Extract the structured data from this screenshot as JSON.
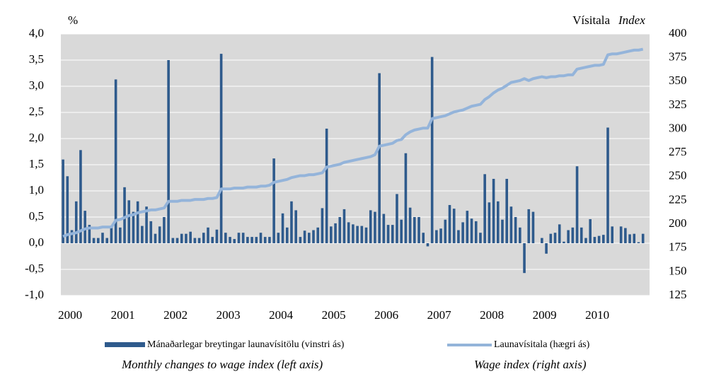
{
  "chart_data": {
    "type": "bar_line",
    "left_axis_label": "%",
    "right_axis_label": "Vísitala",
    "right_axis_label_en": "Index",
    "categories": [
      "2000",
      null,
      null,
      null,
      null,
      null,
      null,
      null,
      null,
      null,
      null,
      null,
      "2001",
      null,
      null,
      null,
      null,
      null,
      null,
      null,
      null,
      null,
      null,
      null,
      "2002",
      null,
      null,
      null,
      null,
      null,
      null,
      null,
      null,
      null,
      null,
      null,
      "2003",
      null,
      null,
      null,
      null,
      null,
      null,
      null,
      null,
      null,
      null,
      null,
      "2004",
      null,
      null,
      null,
      null,
      null,
      null,
      null,
      null,
      null,
      null,
      null,
      "2005",
      null,
      null,
      null,
      null,
      null,
      null,
      null,
      null,
      null,
      null,
      null,
      "2006",
      null,
      null,
      null,
      null,
      null,
      null,
      null,
      null,
      null,
      null,
      null,
      "2007",
      null,
      null,
      null,
      null,
      null,
      null,
      null,
      null,
      null,
      null,
      null,
      "2008",
      null,
      null,
      null,
      null,
      null,
      null,
      null,
      null,
      null,
      null,
      null,
      "2009",
      null,
      null,
      null,
      null,
      null,
      null,
      null,
      null,
      null,
      null,
      null,
      "2010",
      null,
      null,
      null,
      null,
      null,
      null,
      null,
      null,
      null,
      null,
      null,
      null,
      null
    ],
    "series": [
      {
        "name": "Mánaðarlegar breytingar launavísitölu (vinstri ás)",
        "name_en": "Monthly changes to wage index (left axis)",
        "color": "#2e5a8c",
        "axis": "y",
        "values": [
          1.6,
          1.28,
          0.25,
          0.8,
          1.78,
          0.62,
          0.35,
          0.1,
          0.1,
          0.2,
          0.1,
          0.3,
          3.13,
          0.3,
          1.07,
          0.82,
          0.6,
          0.8,
          0.33,
          0.7,
          0.42,
          0.18,
          0.32,
          0.5,
          3.5,
          0.1,
          0.1,
          0.18,
          0.18,
          0.22,
          0.1,
          0.1,
          0.2,
          0.3,
          0.12,
          0.26,
          3.62,
          0.2,
          0.12,
          0.08,
          0.2,
          0.2,
          0.12,
          0.12,
          0.12,
          0.2,
          0.12,
          0.12,
          1.62,
          0.2,
          0.57,
          0.3,
          0.8,
          0.63,
          0.12,
          0.24,
          0.2,
          0.25,
          0.3,
          0.67,
          2.19,
          0.32,
          0.38,
          0.5,
          0.65,
          0.4,
          0.36,
          0.33,
          0.33,
          0.3,
          0.63,
          0.6,
          3.25,
          0.56,
          0.35,
          0.35,
          0.94,
          0.45,
          1.72,
          0.68,
          0.5,
          0.5,
          0.2,
          -0.06,
          3.56,
          0.25,
          0.28,
          0.45,
          0.73,
          0.66,
          0.25,
          0.4,
          0.62,
          0.47,
          0.42,
          0.2,
          1.32,
          0.78,
          1.23,
          0.8,
          0.45,
          1.23,
          0.7,
          0.5,
          0.3,
          -0.57,
          0.65,
          0.6,
          0.0,
          0.1,
          -0.2,
          0.18,
          0.2,
          0.36,
          0.03,
          0.25,
          0.3,
          1.47,
          0.3,
          0.1,
          0.46,
          0.12,
          0.14,
          0.16,
          2.21,
          0.32,
          0.0,
          0.32,
          0.29,
          0.17,
          0.18,
          0.02,
          0.18,
          null
        ]
      },
      {
        "name": "Launavísitala (hægri ás)",
        "name_en": "Wage index (right axis)",
        "color": "#94b4da",
        "axis": "y2",
        "values": [
          187,
          189,
          190,
          191,
          193,
          195,
          196,
          196,
          196,
          197,
          197,
          197,
          204,
          205,
          207,
          209,
          210,
          212,
          213,
          214,
          215,
          215,
          216,
          217,
          224,
          224,
          224,
          225,
          225,
          225,
          226,
          226,
          226,
          227,
          227,
          228,
          237,
          237,
          237,
          238,
          238,
          238,
          239,
          239,
          239,
          240,
          240,
          241,
          244,
          245,
          246,
          247,
          249,
          250,
          251,
          251,
          252,
          252,
          253,
          254,
          260,
          261,
          262,
          263,
          265,
          266,
          267,
          268,
          269,
          270,
          271,
          273,
          282,
          283,
          284,
          285,
          288,
          289,
          294,
          297,
          299,
          300,
          301,
          301,
          311,
          312,
          313,
          314,
          316,
          318,
          319,
          320,
          322,
          324,
          325,
          326,
          331,
          334,
          338,
          341,
          343,
          346,
          349,
          350,
          351,
          353,
          351,
          353,
          354,
          355,
          354,
          355,
          355,
          356,
          356,
          357,
          357,
          363,
          364,
          365,
          366,
          367,
          367,
          368,
          378,
          379,
          379,
          380,
          381,
          382,
          383,
          383,
          384,
          null
        ]
      }
    ],
    "ylim": [
      -1.0,
      4.0
    ],
    "yticks": [
      {
        "value": -1.0,
        "label": "-1,0"
      },
      {
        "value": -0.5,
        "label": "-0,5"
      },
      {
        "value": 0.0,
        "label": "0,0"
      },
      {
        "value": 0.5,
        "label": "0,5"
      },
      {
        "value": 1.0,
        "label": "1,0"
      },
      {
        "value": 1.5,
        "label": "1,5"
      },
      {
        "value": 2.0,
        "label": "2,0"
      },
      {
        "value": 2.5,
        "label": "2,5"
      },
      {
        "value": 3.0,
        "label": "3,0"
      },
      {
        "value": 3.5,
        "label": "3,5"
      },
      {
        "value": 4.0,
        "label": "4,0"
      }
    ],
    "y2lim": [
      125,
      400
    ],
    "y2ticks": [
      125,
      150,
      175,
      200,
      225,
      250,
      275,
      300,
      325,
      350,
      375,
      400
    ],
    "grid": true
  }
}
